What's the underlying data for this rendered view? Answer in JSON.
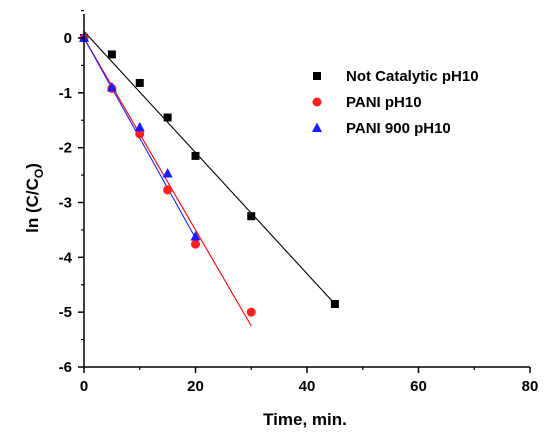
{
  "chart_data": {
    "type": "scatter",
    "xlabel": "Time, min.",
    "ylabel_main": "ln (C/C",
    "ylabel_sub": "O",
    "ylabel_close": ")",
    "xlim": [
      0,
      80
    ],
    "ylim": [
      -6,
      0
    ],
    "x_ticks": [
      0,
      20,
      40,
      60,
      80
    ],
    "y_ticks": [
      0,
      -1,
      -2,
      -3,
      -4,
      -5,
      -6
    ],
    "grid": false,
    "legend_position": "top-right",
    "series": [
      {
        "name": "Not Catalytic pH10",
        "marker": "square",
        "color": "#000000",
        "line_color": "#000000",
        "x": [
          0,
          5,
          10,
          15,
          20,
          30,
          45
        ],
        "y": [
          0,
          -0.3,
          -0.82,
          -1.45,
          -2.15,
          -3.25,
          -4.85
        ],
        "fit": {
          "x": [
            0,
            45
          ],
          "y": [
            0.12,
            -4.85
          ]
        }
      },
      {
        "name": "PANI pH10",
        "marker": "circle",
        "color": "#ff2020",
        "line_color": "#ff0000",
        "x": [
          0,
          5,
          10,
          15,
          20,
          30
        ],
        "y": [
          0,
          -0.92,
          -1.75,
          -2.77,
          -3.76,
          -5.0
        ],
        "fit": {
          "x": [
            0,
            30
          ],
          "y": [
            0.0,
            -5.25
          ]
        }
      },
      {
        "name": "PANI 900 pH10",
        "marker": "triangle",
        "color": "#1a1aff",
        "line_color": "#2020ff",
        "x": [
          0,
          5,
          10,
          15,
          20
        ],
        "y": [
          0,
          -0.9,
          -1.63,
          -2.47,
          -3.62
        ],
        "fit": {
          "x": [
            0,
            20
          ],
          "y": [
            0.0,
            -3.65
          ]
        }
      }
    ]
  }
}
